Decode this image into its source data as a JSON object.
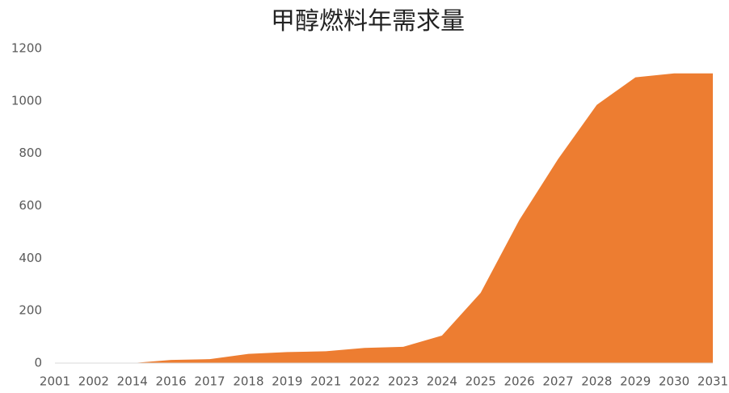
{
  "chart_data": {
    "type": "area",
    "title": "甲醇燃料年需求量",
    "categories": [
      "2001",
      "2002",
      "2014",
      "2016",
      "2017",
      "2018",
      "2019",
      "2021",
      "2022",
      "2023",
      "2024",
      "2025",
      "2026",
      "2027",
      "2028",
      "2029",
      "2030",
      "2031"
    ],
    "values": [
      0,
      0,
      0,
      12,
      15,
      35,
      42,
      45,
      58,
      62,
      105,
      268,
      546,
      778,
      985,
      1090,
      1105,
      1105
    ],
    "color": "#ed7d31",
    "ylim": [
      0,
      1200
    ],
    "yticks": [
      0,
      200,
      400,
      600,
      800,
      1000,
      1200
    ],
    "grid": false
  }
}
